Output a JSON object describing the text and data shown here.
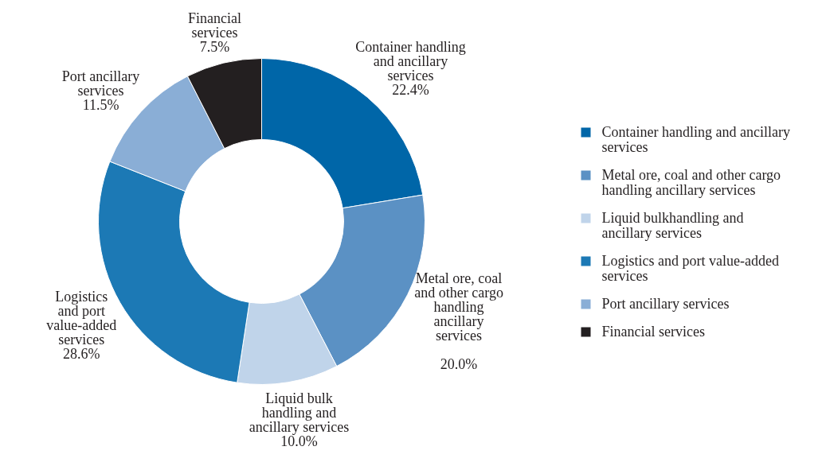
{
  "chart_data": {
    "type": "donut",
    "categories": [
      "Container handling and ancillary services",
      "Metal ore, coal and other cargo handling ancillary services",
      "Liquid bulkhandling and ancillary services",
      "Logistics and port value-added services",
      "Port ancillary services",
      "Financial services"
    ],
    "values": [
      22.4,
      20.0,
      10.0,
      28.6,
      11.5,
      7.5
    ],
    "colors": [
      "#0066a8",
      "#5b91c4",
      "#c0d4ea",
      "#1c79b5",
      "#8aaed6",
      "#231f20"
    ],
    "value_labels": [
      "Container handling\nand ancillary\nservices\n22.4%",
      "Metal ore, coal\nand other cargo\nhandling\nancillary\nservices\n\n20.0%",
      "Liquid bulk\nhandling and\nancillary services\n10.0%",
      "Logistics\nand port\nvalue-added\nservices\n28.6%",
      "Port ancillary\nservices\n11.5%",
      "Financial\nservices\n7.5%"
    ],
    "legend": "right"
  }
}
